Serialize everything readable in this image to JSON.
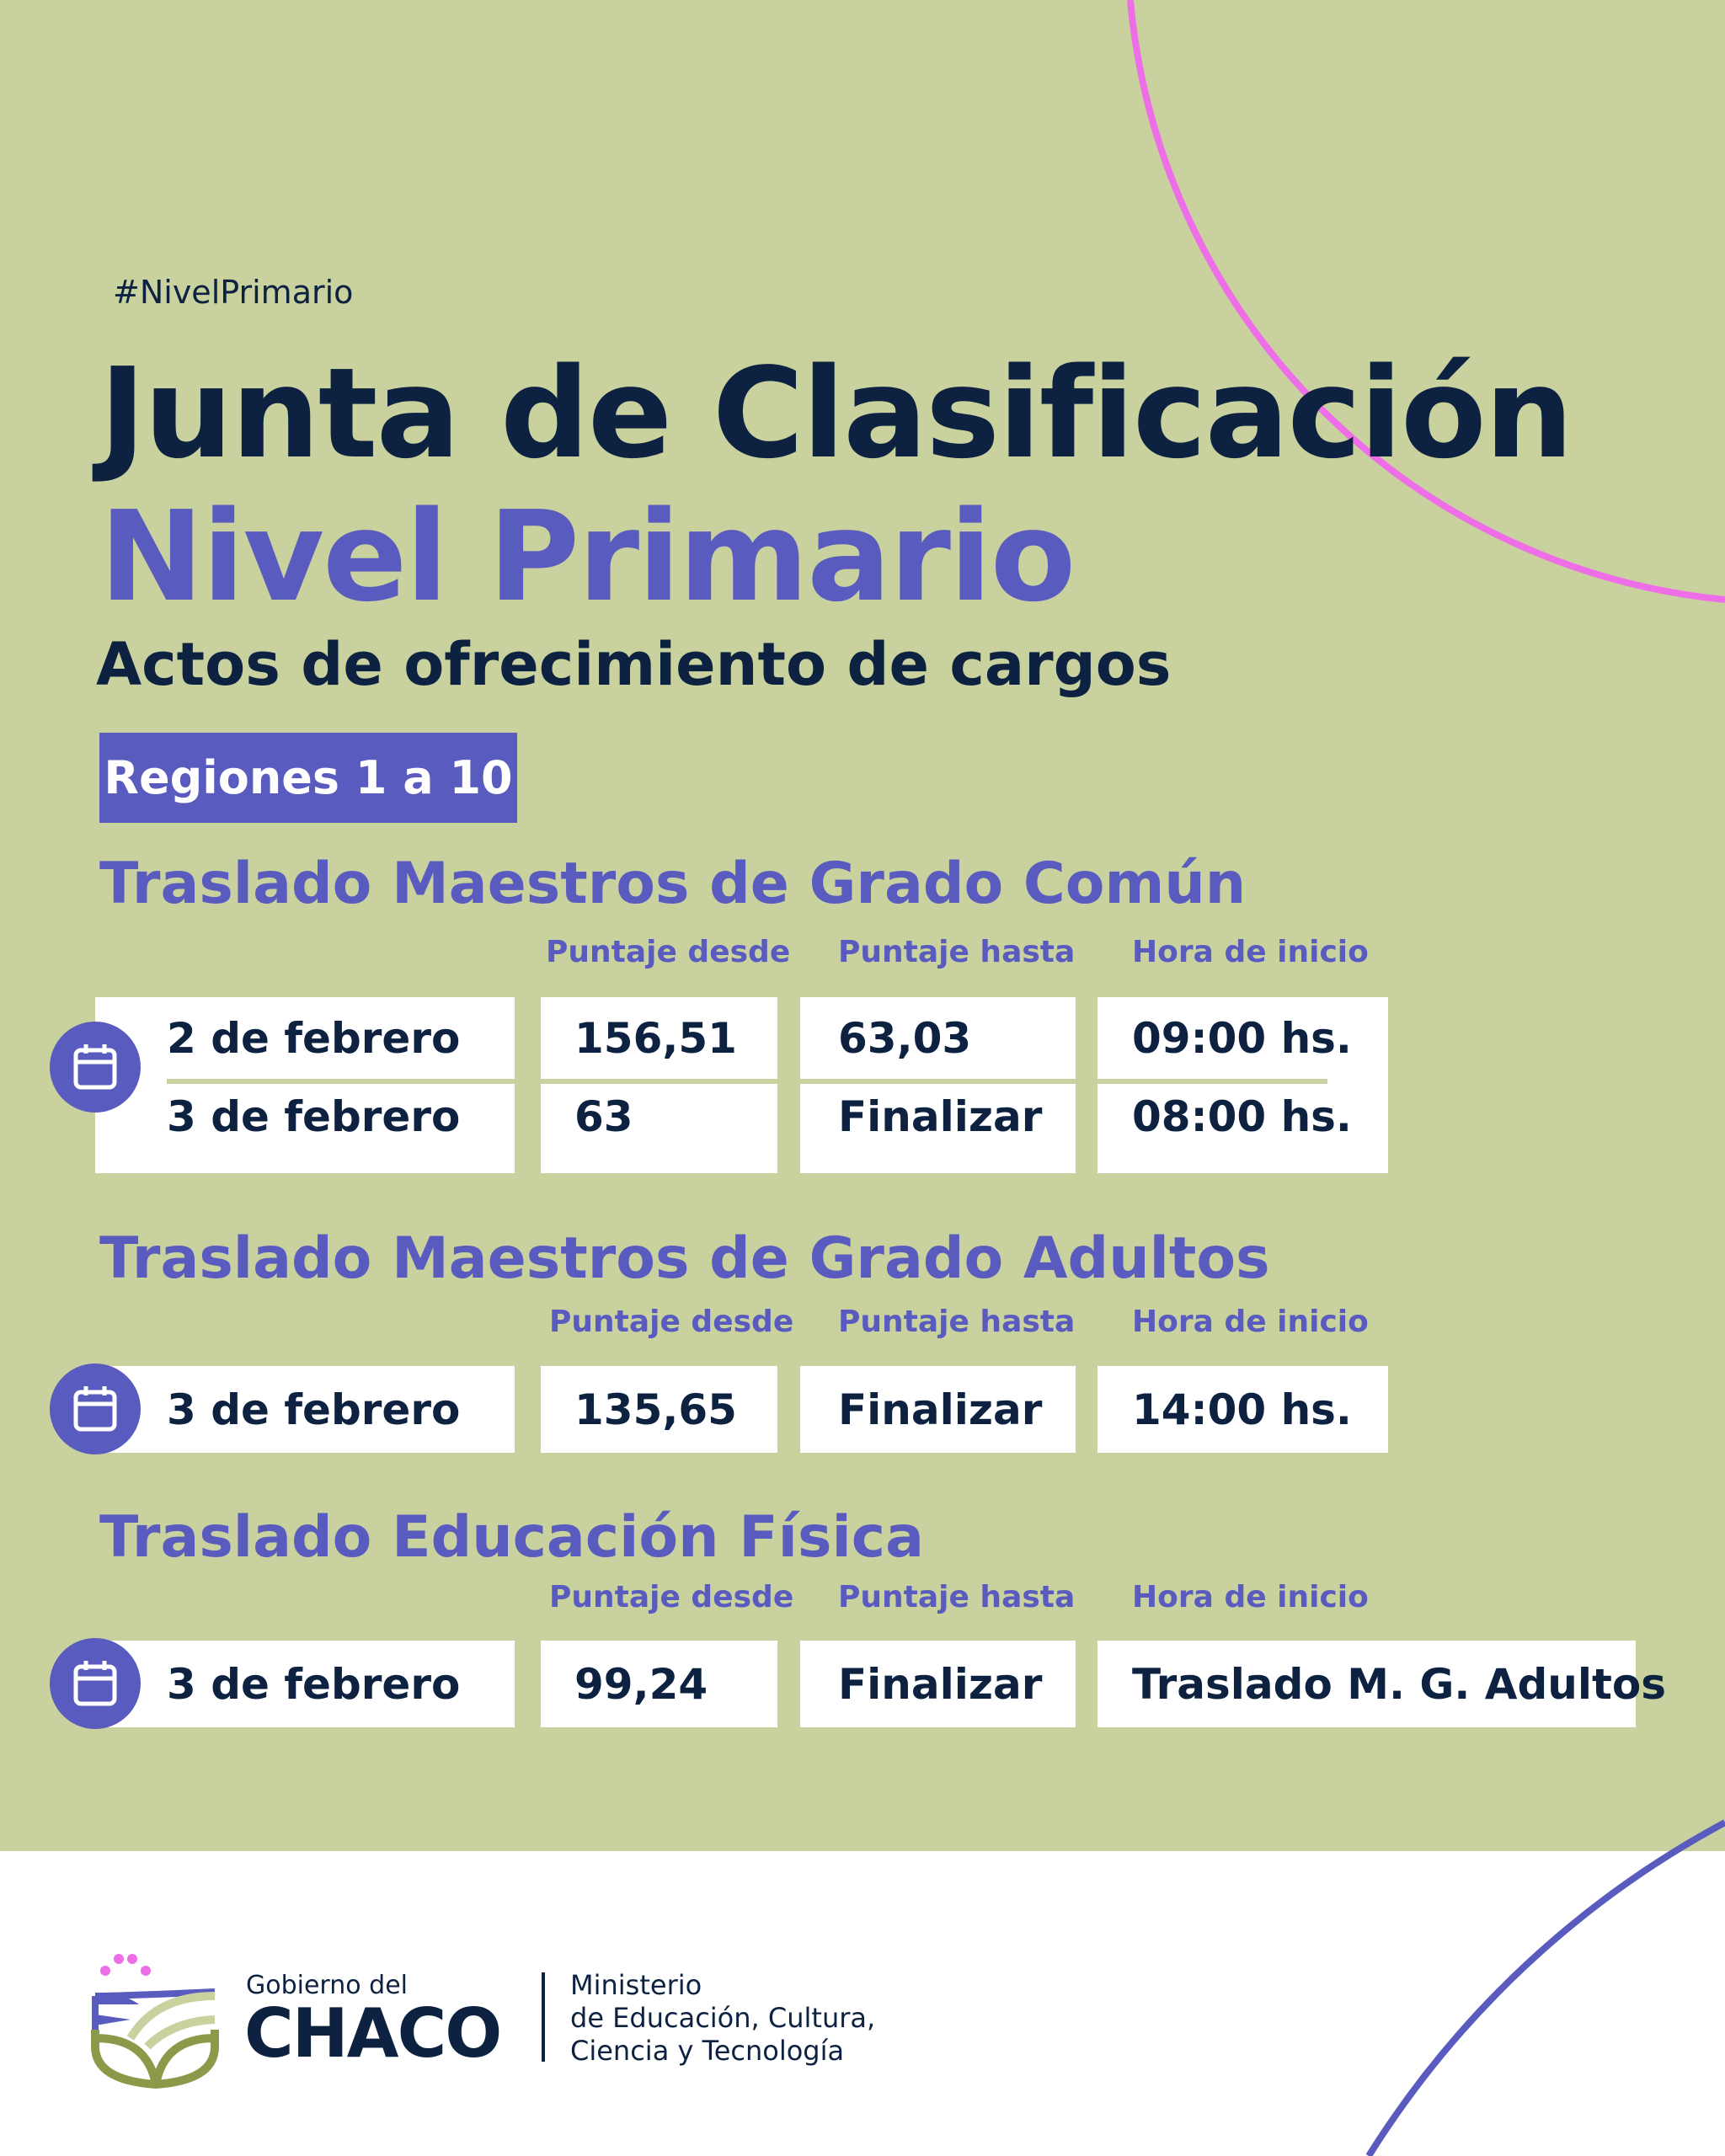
{
  "hashtag": "#NivelPrimario",
  "title": "Junta de Clasificación",
  "subtitle": "Nivel Primario",
  "heading": "Actos de ofrecimiento de cargos",
  "badge": "Regiones 1 a 10",
  "colors": {
    "background": "#c9d29f",
    "navy": "#0d2240",
    "purple": "#5a5bbf",
    "pink": "#ee6ee8"
  },
  "columns": [
    "Puntaje desde",
    "Puntaje hasta",
    "Hora de inicio"
  ],
  "sections": [
    {
      "title": "Traslado Maestros de Grado Común",
      "rows": [
        {
          "date": "2 de febrero",
          "desde": "156,51",
          "hasta": "63,03",
          "hora": "09:00 hs."
        },
        {
          "date": "3 de febrero",
          "desde": "63",
          "hasta": "Finalizar",
          "hora": "08:00 hs."
        }
      ]
    },
    {
      "title": "Traslado Maestros de Grado Adultos",
      "rows": [
        {
          "date": "3 de febrero",
          "desde": "135,65",
          "hasta": "Finalizar",
          "hora": "14:00 hs."
        }
      ]
    },
    {
      "title": "Traslado Educación Física",
      "rows": [
        {
          "date": "3 de febrero",
          "desde": "99,24",
          "hasta": "Finalizar",
          "hora": "Traslado M. G. Adultos"
        }
      ]
    }
  ],
  "footer": {
    "gov_small": "Gobierno del",
    "gov_big": "CHACO",
    "ministry": [
      "Ministerio",
      "de Educación, Cultura,",
      "Ciencia y Tecnología"
    ]
  },
  "icons": {
    "calendar": "calendar-icon"
  }
}
